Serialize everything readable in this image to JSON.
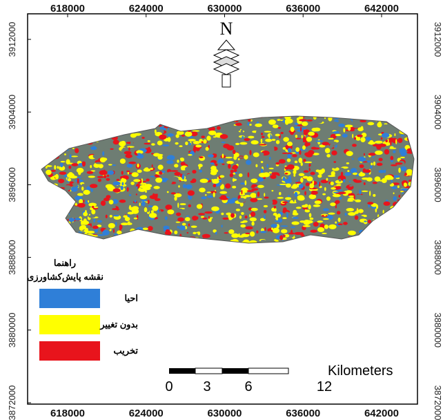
{
  "map": {
    "north": "N",
    "xticks": [
      618000,
      624000,
      630000,
      636000,
      642000
    ],
    "yticks": [
      3912000,
      3904000,
      3896000,
      3888000,
      3880000,
      3872000
    ],
    "legend": {
      "title": "راهنما",
      "subtitle": "نقشه پایش‌کشاورزی",
      "items": [
        {
          "label": "احیا",
          "color": "#2f7fd8"
        },
        {
          "label": "بدون تغییر",
          "color": "#ffff00"
        },
        {
          "label": "تخریب",
          "color": "#e8141c"
        }
      ]
    },
    "scale_bar": {
      "labels": [
        "0",
        "3",
        "6",
        "12"
      ],
      "unit": "Kilometers"
    }
  }
}
